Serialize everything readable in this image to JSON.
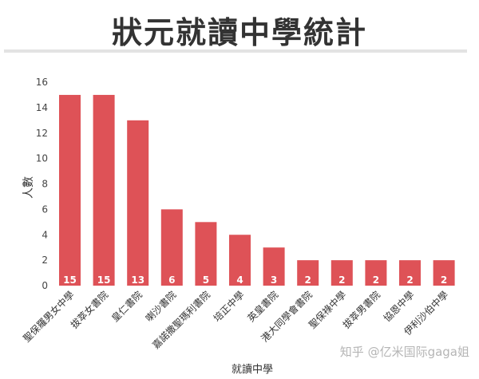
{
  "chart_data": {
    "type": "bar",
    "title": "狀元就讀中學統計",
    "xlabel": "就讀中學",
    "ylabel": "人數",
    "ylim": [
      0,
      16
    ],
    "yticks": [
      0,
      2,
      4,
      6,
      8,
      10,
      12,
      14,
      16
    ],
    "grid": false,
    "legend": "none",
    "categories": [
      "聖保羅男女中學",
      "拔萃女書院",
      "皇仁書院",
      "喇沙書院",
      "嘉諾撒聖瑪利書院",
      "培正中學",
      "英皇書院",
      "港大同學會書院",
      "聖保祿中學",
      "拔萃男書院",
      "協恩中學",
      "伊利沙伯中學"
    ],
    "values": [
      15,
      15,
      13,
      6,
      5,
      4,
      3,
      2,
      2,
      2,
      2,
      2
    ],
    "bar_color": "#de5257",
    "data_label_color": "#ffffff"
  },
  "watermark": "知乎 @亿米国际gaga姐"
}
